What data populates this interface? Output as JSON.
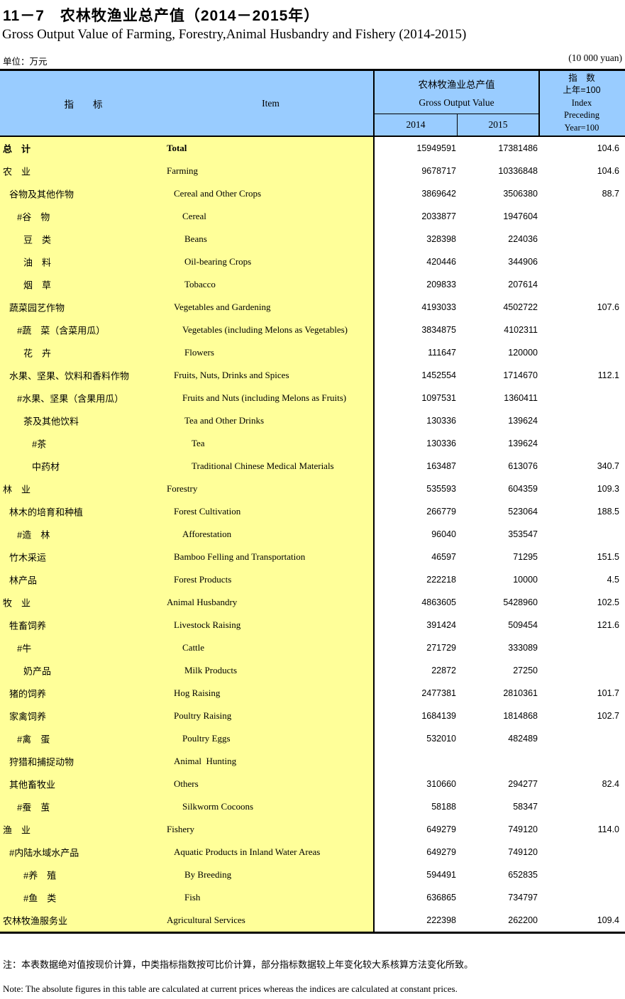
{
  "title_cn": "11－7　农林牧渔业总产值（2014－2015年）",
  "title_en": "Gross Output Value of Farming, Forestry,Animal Husbandry and Fishery (2014-2015)",
  "unit_left": "单位：万元",
  "unit_right": "(10 000 yuan)",
  "colors": {
    "header_bg": "#99CCFF",
    "indicator_bg": "#FFFF99",
    "border": "#000000"
  },
  "header": {
    "indicator_cn": "指　　标",
    "indicator_en": "Item",
    "group_cn": "农林牧渔业总产值",
    "group_en": "Gross Output Value",
    "year1": "2014",
    "year2": "2015",
    "index_lines": [
      "指　数",
      "上年=100",
      "Index",
      "Preceding",
      "Year=100"
    ]
  },
  "rows": [
    {
      "cn": "总　计",
      "en": "Total",
      "v2014": "15949591",
      "v2015": "17381486",
      "idx": "104.6",
      "level": 0,
      "bold": true
    },
    {
      "cn": "农　业",
      "en": "Farming",
      "v2014": "9678717",
      "v2015": "10336848",
      "idx": "104.6",
      "level": 0,
      "bold": false
    },
    {
      "cn": "谷物及其他作物",
      "en": "Cereal and Other Crops",
      "v2014": "3869642",
      "v2015": "3506380",
      "idx": "88.7",
      "level": 1,
      "bold": false
    },
    {
      "cn": "#谷　物",
      "en": "Cereal",
      "v2014": "2033877",
      "v2015": "1947604",
      "idx": "",
      "level": 2,
      "bold": false
    },
    {
      "cn": "豆　类",
      "en": "Beans",
      "v2014": "328398",
      "v2015": "224036",
      "idx": "",
      "level": 3,
      "bold": false
    },
    {
      "cn": "油　料",
      "en": "Oil-bearing Crops",
      "v2014": "420446",
      "v2015": "344906",
      "idx": "",
      "level": 3,
      "bold": false
    },
    {
      "cn": "烟　草",
      "en": "Tobacco",
      "v2014": "209833",
      "v2015": "207614",
      "idx": "",
      "level": 3,
      "bold": false
    },
    {
      "cn": "蔬菜园艺作物",
      "en": "Vegetables and Gardening",
      "v2014": "4193033",
      "v2015": "4502722",
      "idx": "107.6",
      "level": 1,
      "bold": false
    },
    {
      "cn": "#蔬　菜（含菜用瓜）",
      "en": "Vegetables (including Melons as Vegetables)",
      "v2014": "3834875",
      "v2015": "4102311",
      "idx": "",
      "level": 2,
      "bold": false
    },
    {
      "cn": "花　卉",
      "en": "Flowers",
      "v2014": "111647",
      "v2015": "120000",
      "idx": "",
      "level": 3,
      "bold": false
    },
    {
      "cn": "水果、坚果、饮料和香料作物",
      "en": "Fruits, Nuts, Drinks and Spices",
      "v2014": "1452554",
      "v2015": "1714670",
      "idx": "112.1",
      "level": 1,
      "bold": false
    },
    {
      "cn": "#水果、坚果（含果用瓜）",
      "en": "Fruits and Nuts (including Melons as Fruits)",
      "v2014": "1097531",
      "v2015": "1360411",
      "idx": "",
      "level": 2,
      "bold": false
    },
    {
      "cn": "茶及其他饮料",
      "en": "Tea and Other Drinks",
      "v2014": "130336",
      "v2015": "139624",
      "idx": "",
      "level": 3,
      "bold": false
    },
    {
      "cn": "#茶",
      "en": "Tea",
      "v2014": "130336",
      "v2015": "139624",
      "idx": "",
      "level": 4,
      "bold": false
    },
    {
      "cn": "中药材",
      "en": "Traditional Chinese Medical Materials",
      "v2014": "163487",
      "v2015": "613076",
      "idx": "340.7",
      "level": 4,
      "bold": false
    },
    {
      "cn": "林　业",
      "en": "Forestry",
      "v2014": "535593",
      "v2015": "604359",
      "idx": "109.3",
      "level": 0,
      "bold": false
    },
    {
      "cn": "林木的培育和种植",
      "en": "Forest Cultivation",
      "v2014": "266779",
      "v2015": "523064",
      "idx": "188.5",
      "level": 1,
      "bold": false
    },
    {
      "cn": "#造　林",
      "en": "Afforestation",
      "v2014": "96040",
      "v2015": "353547",
      "idx": "",
      "level": 2,
      "bold": false
    },
    {
      "cn": "竹木采运",
      "en": "Bamboo Felling and Transportation",
      "v2014": "46597",
      "v2015": "71295",
      "idx": "151.5",
      "level": 1,
      "bold": false
    },
    {
      "cn": "林产品",
      "en": "Forest Products",
      "v2014": "222218",
      "v2015": "10000",
      "idx": "4.5",
      "level": 1,
      "bold": false
    },
    {
      "cn": "牧　业",
      "en": "Animal Husbandry",
      "v2014": "4863605",
      "v2015": "5428960",
      "idx": "102.5",
      "level": 0,
      "bold": false
    },
    {
      "cn": "牲畜饲养",
      "en": "Livestock Raising",
      "v2014": "391424",
      "v2015": "509454",
      "idx": "121.6",
      "level": 1,
      "bold": false
    },
    {
      "cn": "#牛",
      "en": "Cattle",
      "v2014": "271729",
      "v2015": "333089",
      "idx": "",
      "level": 2,
      "bold": false
    },
    {
      "cn": "奶产品",
      "en": "Milk Products",
      "v2014": "22872",
      "v2015": "27250",
      "idx": "",
      "level": 3,
      "bold": false
    },
    {
      "cn": "猪的饲养",
      "en": "Hog Raising",
      "v2014": "2477381",
      "v2015": "2810361",
      "idx": "101.7",
      "level": 1,
      "bold": false
    },
    {
      "cn": "家禽饲养",
      "en": "Poultry Raising",
      "v2014": "1684139",
      "v2015": "1814868",
      "idx": "102.7",
      "level": 1,
      "bold": false
    },
    {
      "cn": "#禽　蛋",
      "en": "Poultry Eggs",
      "v2014": "532010",
      "v2015": "482489",
      "idx": "",
      "level": 2,
      "bold": false
    },
    {
      "cn": "狩猎和捕捉动物",
      "en": "Animal  Hunting",
      "v2014": "",
      "v2015": "",
      "idx": "",
      "level": 1,
      "bold": false
    },
    {
      "cn": "其他畜牧业",
      "en": "Others",
      "v2014": "310660",
      "v2015": "294277",
      "idx": "82.4",
      "level": 1,
      "bold": false
    },
    {
      "cn": "#蚕　茧",
      "en": "Silkworm Cocoons",
      "v2014": "58188",
      "v2015": "58347",
      "idx": "",
      "level": 2,
      "bold": false
    },
    {
      "cn": "渔　业",
      "en": "Fishery",
      "v2014": "649279",
      "v2015": "749120",
      "idx": "114.0",
      "level": 0,
      "bold": false
    },
    {
      "cn": "#内陆水域水产品",
      "en": "Aquatic Products in Inland Water Areas",
      "v2014": "649279",
      "v2015": "749120",
      "idx": "",
      "level": 1,
      "bold": false
    },
    {
      "cn": "#养　殖",
      "en": "By Breeding",
      "v2014": "594491",
      "v2015": "652835",
      "idx": "",
      "level": 3,
      "bold": false
    },
    {
      "cn": "#鱼　类",
      "en": "Fish",
      "v2014": "636865",
      "v2015": "734797",
      "idx": "",
      "level": 3,
      "bold": false
    },
    {
      "cn": "农林牧渔服务业",
      "en": "Agricultural Services",
      "v2014": "222398",
      "v2015": "262200",
      "idx": "109.4",
      "level": 0,
      "bold": false
    }
  ],
  "notes": {
    "cn": "注：本表数据绝对值按现价计算，中类指标指数按可比价计算，部分指标数据较上年变化较大系核算方法变化所致。",
    "en": "Note: The absolute figures in this table are calculated at current prices whereas the indices are calculated at constant prices."
  }
}
